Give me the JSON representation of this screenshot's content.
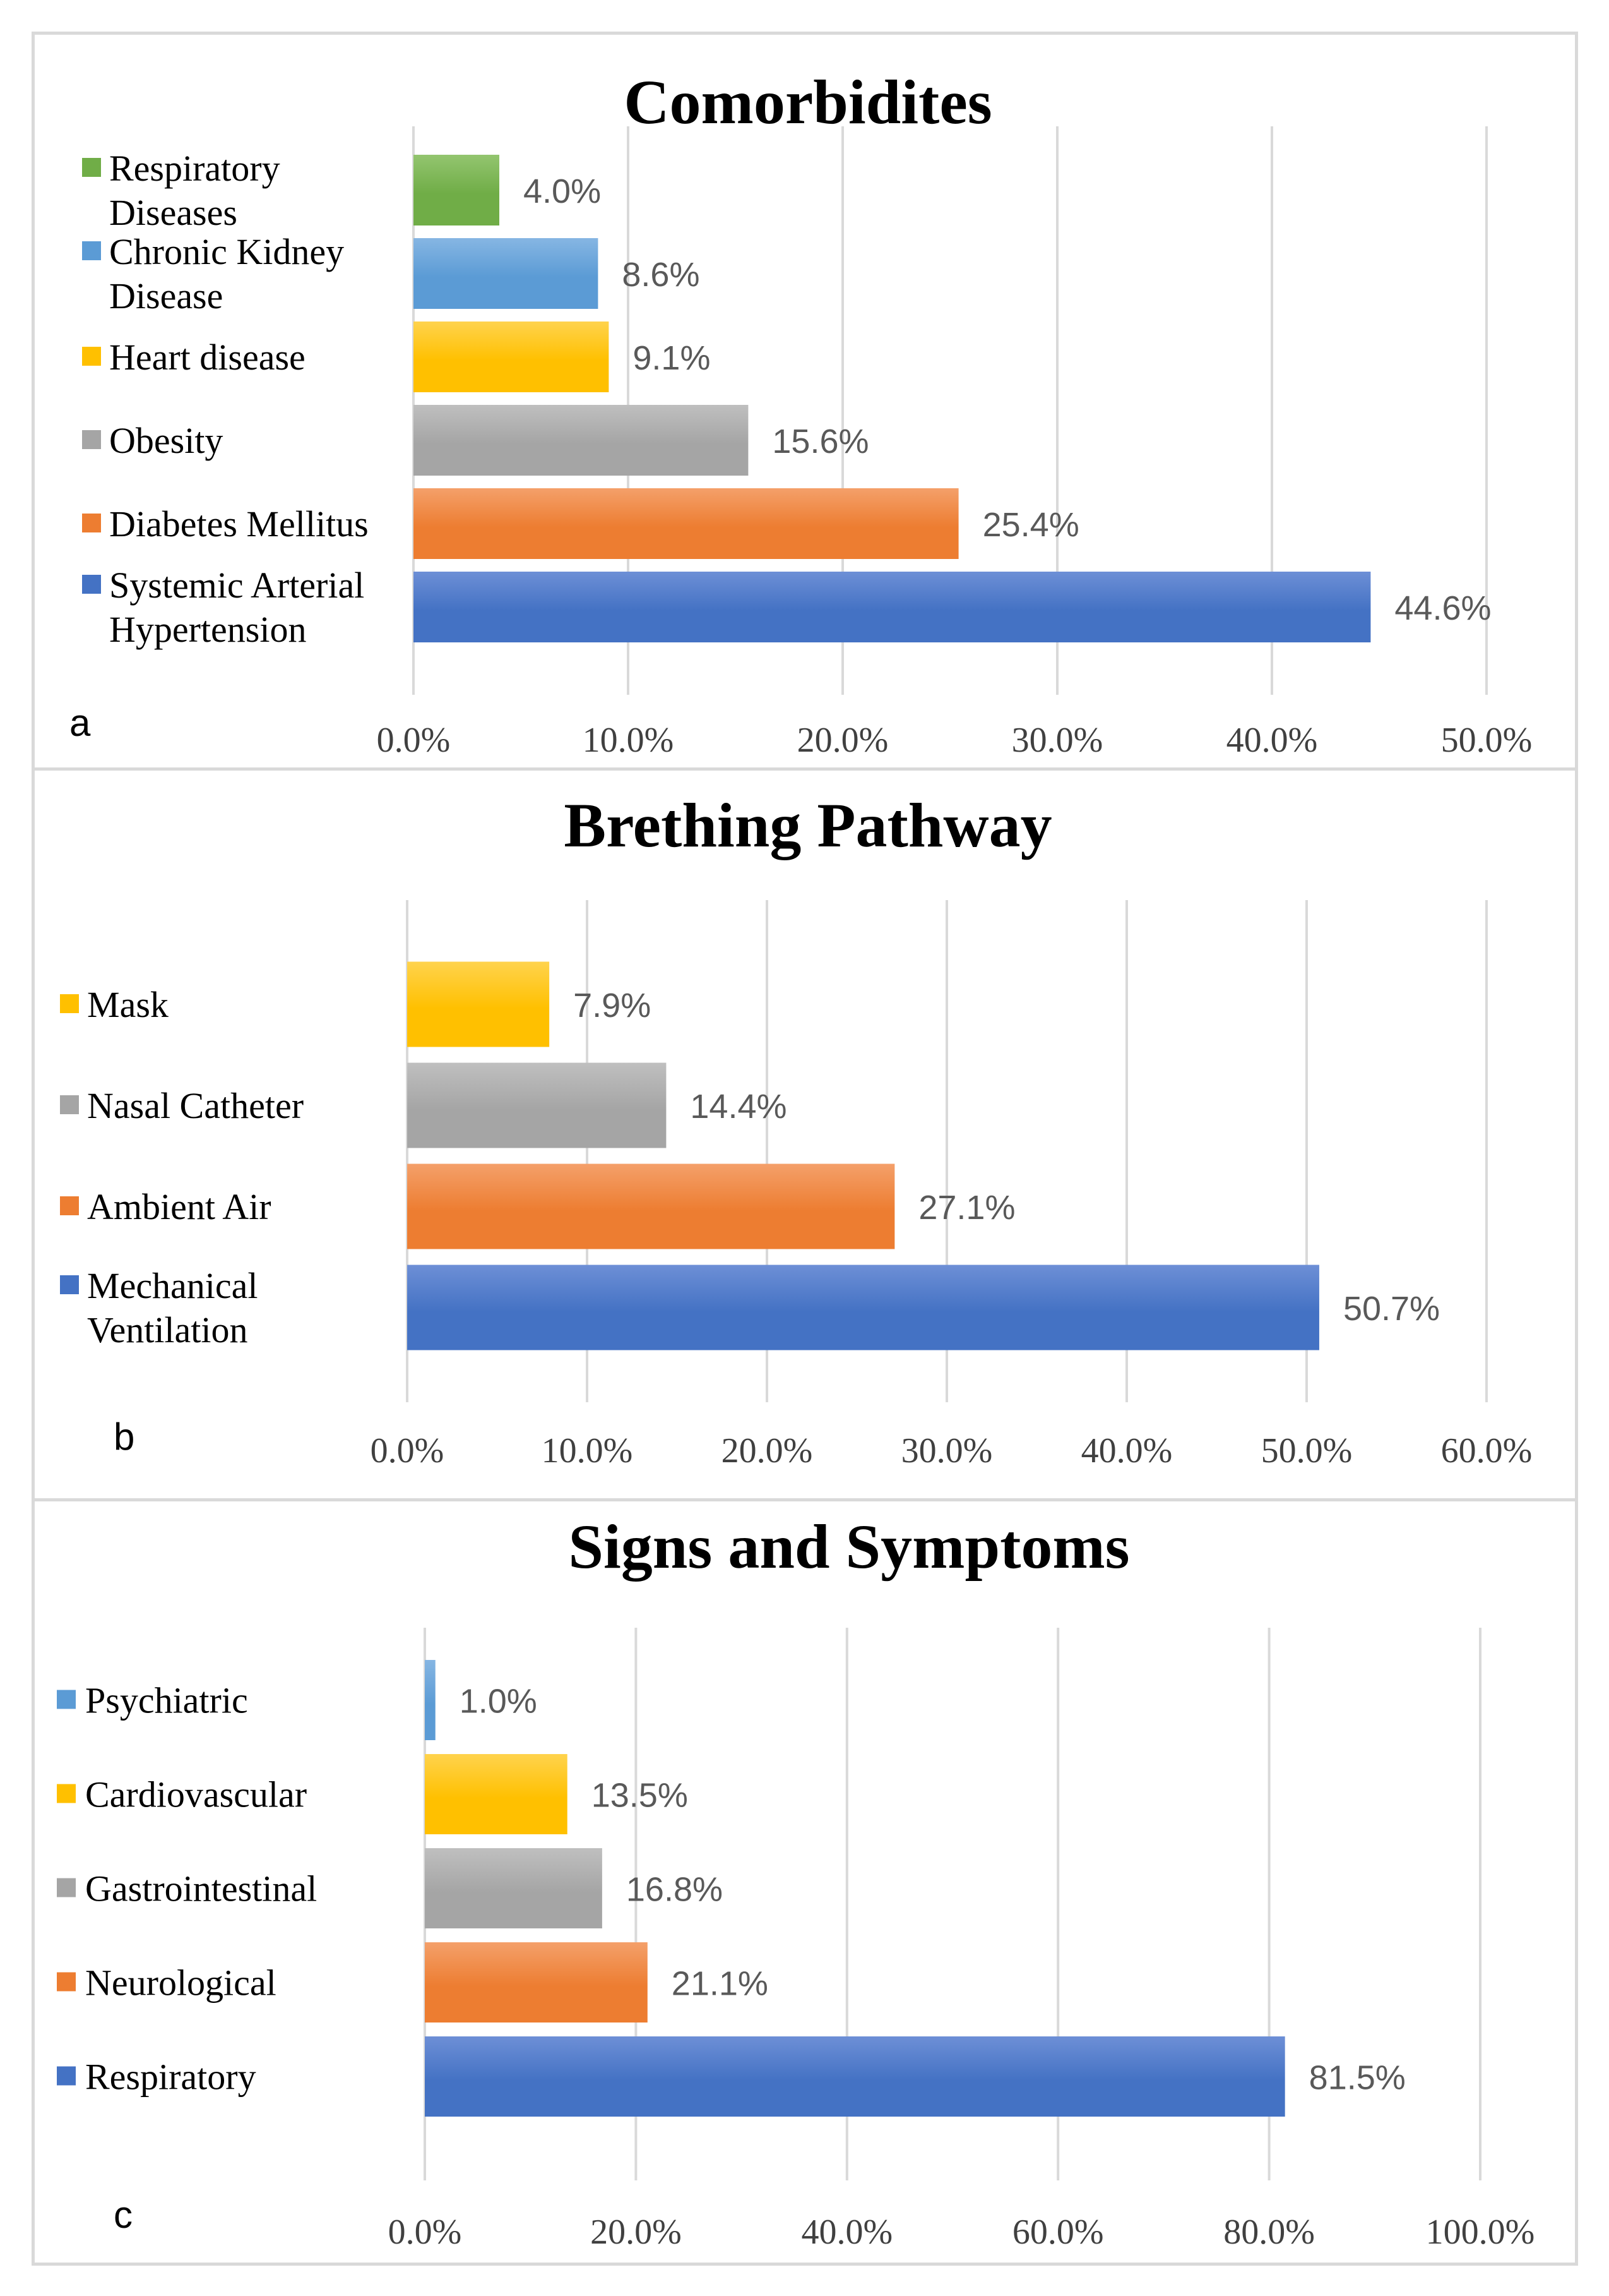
{
  "chart_data": [
    {
      "type": "bar",
      "orientation": "horizontal",
      "panel_label": "a",
      "title": "Comorbidites",
      "xlim": [
        0,
        50
      ],
      "ticks": [
        "0.0%",
        "10.0%",
        "20.0%",
        "30.0%",
        "40.0%",
        "50.0%"
      ],
      "grid": true,
      "legend_position": "left",
      "categories": [
        {
          "name": "Systemic Arterial Hypertension",
          "lines": [
            "Systemic Arterial",
            "Hypertension"
          ],
          "value": 44.6,
          "label": "44.6%",
          "color": "#4472c4",
          "light": "#6d8fd6"
        },
        {
          "name": "Diabetes Mellitus",
          "lines": [
            "Diabetes Mellitus"
          ],
          "value": 25.4,
          "label": "25.4%",
          "color": "#ed7d31",
          "light": "#f4a06a"
        },
        {
          "name": "Obesity",
          "lines": [
            "Obesity"
          ],
          "value": 15.6,
          "label": "15.6%",
          "color": "#a5a5a5",
          "light": "#bfbfbf"
        },
        {
          "name": "Heart disease",
          "lines": [
            "Heart disease"
          ],
          "value": 9.1,
          "label": "9.1%",
          "color": "#ffc000",
          "light": "#ffd34d"
        },
        {
          "name": "Chronic Kidney Disease",
          "lines": [
            "Chronic Kidney",
            "Disease"
          ],
          "value": 8.6,
          "label": "8.6%",
          "color": "#5b9bd5",
          "light": "#86b6e3"
        },
        {
          "name": "Respiratory Diseases",
          "lines": [
            "Respiratory",
            "Diseases"
          ],
          "value": 4.0,
          "label": "4.0%",
          "color": "#70ad47",
          "light": "#93c56f"
        }
      ]
    },
    {
      "type": "bar",
      "orientation": "horizontal",
      "panel_label": "b",
      "title": "Brething Pathway",
      "xlim": [
        0,
        60
      ],
      "ticks": [
        "0.0%",
        "10.0%",
        "20.0%",
        "30.0%",
        "40.0%",
        "50.0%",
        "60.0%"
      ],
      "grid": true,
      "legend_position": "left",
      "categories": [
        {
          "name": "Mechanical Ventilation",
          "lines": [
            "Mechanical",
            "Ventilation"
          ],
          "value": 50.7,
          "label": "50.7%",
          "color": "#4472c4",
          "light": "#6d8fd6"
        },
        {
          "name": "Ambient Air",
          "lines": [
            "Ambient Air"
          ],
          "value": 27.1,
          "label": "27.1%",
          "color": "#ed7d31",
          "light": "#f4a06a"
        },
        {
          "name": "Nasal Catheter",
          "lines": [
            "Nasal Catheter"
          ],
          "value": 14.4,
          "label": "14.4%",
          "color": "#a5a5a5",
          "light": "#bfbfbf"
        },
        {
          "name": "Mask",
          "lines": [
            "Mask"
          ],
          "value": 7.9,
          "label": "7.9%",
          "color": "#ffc000",
          "light": "#ffd34d"
        }
      ]
    },
    {
      "type": "bar",
      "orientation": "horizontal",
      "panel_label": "c",
      "title": "Signs and Symptoms",
      "xlim": [
        0,
        100
      ],
      "ticks": [
        "0.0%",
        "20.0%",
        "40.0%",
        "60.0%",
        "80.0%",
        "100.0%"
      ],
      "grid": true,
      "legend_position": "left",
      "categories": [
        {
          "name": "Respiratory",
          "lines": [
            "Respiratory"
          ],
          "value": 81.5,
          "label": "81.5%",
          "color": "#4472c4",
          "light": "#6d8fd6"
        },
        {
          "name": "Neurological",
          "lines": [
            "Neurological"
          ],
          "value": 21.1,
          "label": "21.1%",
          "color": "#ed7d31",
          "light": "#f4a06a"
        },
        {
          "name": "Gastrointestinal",
          "lines": [
            "Gastrointestinal"
          ],
          "value": 16.8,
          "label": "16.8%",
          "color": "#a5a5a5",
          "light": "#bfbfbf"
        },
        {
          "name": "Cardiovascular",
          "lines": [
            "Cardiovascular"
          ],
          "value": 13.5,
          "label": "13.5%",
          "color": "#ffc000",
          "light": "#ffd34d"
        },
        {
          "name": "Psychiatric",
          "lines": [
            "Psychiatric"
          ],
          "value": 1.0,
          "label": "1.0%",
          "color": "#5b9bd5",
          "light": "#86b6e3"
        }
      ]
    }
  ]
}
